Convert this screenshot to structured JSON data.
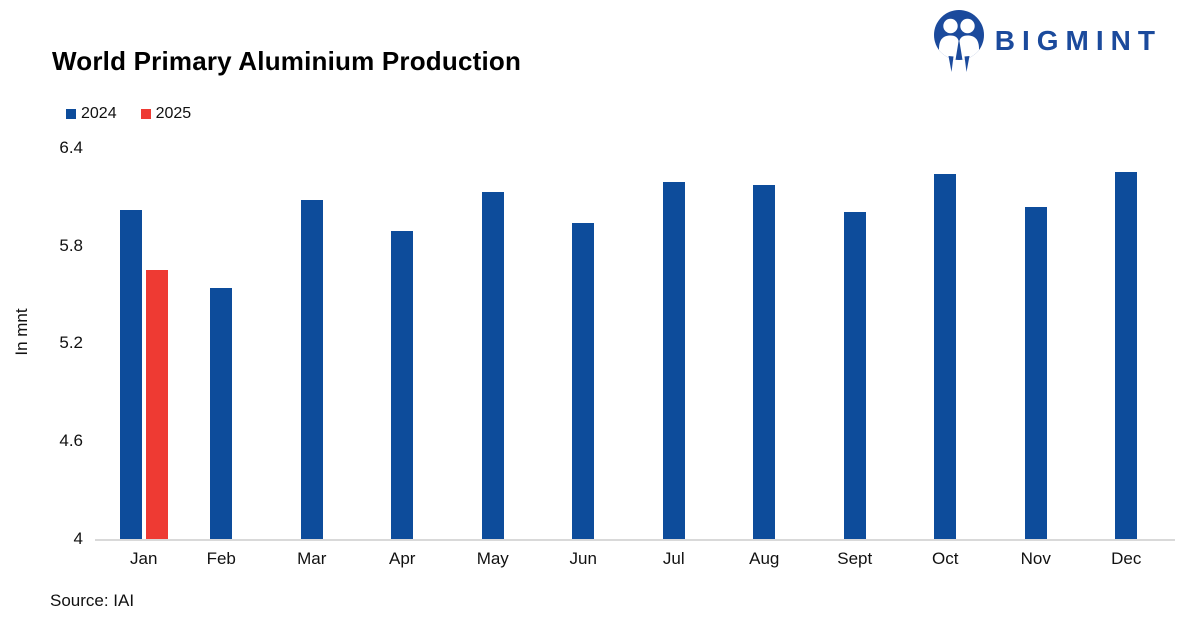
{
  "title": "World Primary Aluminium Production",
  "logo": {
    "text": "BIGMINT",
    "color": "#1b4a9c",
    "icon": "bigmint-people-icon"
  },
  "source": "Source: IAI",
  "chart_data": {
    "type": "bar",
    "title": "World Primary Aluminium Production",
    "categories": [
      "Jan",
      "Feb",
      "Mar",
      "Apr",
      "May",
      "Jun",
      "Jul",
      "Aug",
      "Sept",
      "Oct",
      "Nov",
      "Dec"
    ],
    "series": [
      {
        "name": "2024",
        "color": "#0d4c9b",
        "values": [
          6.02,
          5.54,
          6.08,
          5.89,
          6.13,
          5.94,
          6.19,
          6.17,
          6.01,
          6.24,
          6.04,
          6.25
        ]
      },
      {
        "name": "2025",
        "color": "#ee3a33",
        "values": [
          5.65,
          null,
          null,
          null,
          null,
          null,
          null,
          null,
          null,
          null,
          null,
          null
        ]
      }
    ],
    "xlabel": "",
    "ylabel": "In mnt",
    "ylim": [
      4,
      6.4
    ],
    "yticks": [
      6.4,
      5.8,
      5.2,
      4.6,
      4
    ],
    "grid": false,
    "legend_position": "top-left"
  }
}
